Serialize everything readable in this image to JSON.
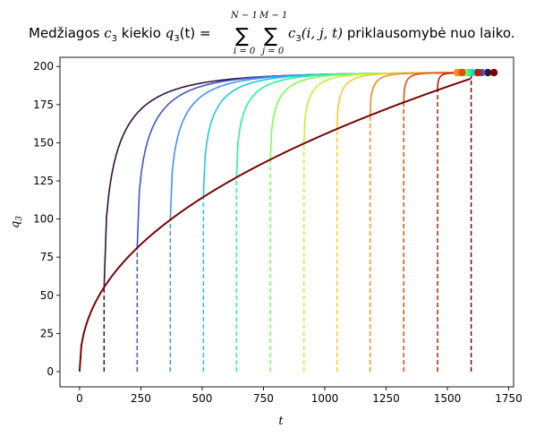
{
  "chart_data": {
    "type": "line",
    "title": {
      "prefix": "Medžiagos ",
      "c3": "c",
      "c3_sub": "3",
      "mid1": " kiekio ",
      "q": "q",
      "q_sub": "3",
      "mid2": "(t) = ",
      "sum1_upper": "N − 1",
      "sum1_lower": "i = 0",
      "sum2_upper": "M − 1",
      "sum2_lower": "j = 0",
      "sigma": "∑",
      "term": "c",
      "term_sub": "3",
      "term_args": "(i, j, t)",
      "suffix": " priklausomybė nuo laiko."
    },
    "xlabel": "t",
    "ylabel": {
      "base": "q",
      "sub": "3"
    },
    "xlim": [
      -80,
      1770
    ],
    "ylim": [
      -10,
      206
    ],
    "xticks": [
      0,
      250,
      500,
      750,
      1000,
      1250,
      1500,
      1750
    ],
    "yticks": [
      0,
      25,
      50,
      75,
      100,
      125,
      150,
      175,
      200
    ],
    "grid": false,
    "base_curve": {
      "color": "#7a0403",
      "x_end": 1595,
      "y_end": 192
    },
    "branches": [
      {
        "start": 100,
        "end": 1665,
        "color": "#30123b",
        "final": 196
      },
      {
        "start": 235,
        "end": 1640,
        "color": "#4454c4",
        "final": 196
      },
      {
        "start": 370,
        "end": 1620,
        "color": "#4391f9",
        "final": 196
      },
      {
        "start": 505,
        "end": 1600,
        "color": "#1fc9dd",
        "final": 196
      },
      {
        "start": 640,
        "end": 1585,
        "color": "#2af396",
        "final": 196
      },
      {
        "start": 778,
        "end": 1570,
        "color": "#7cfe54",
        "final": 196
      },
      {
        "start": 915,
        "end": 1555,
        "color": "#c5f034",
        "final": 196
      },
      {
        "start": 1050,
        "end": 1545,
        "color": "#f8c933",
        "final": 196
      },
      {
        "start": 1185,
        "end": 1540,
        "color": "#fb8a22",
        "final": 196
      },
      {
        "start": 1322,
        "end": 1560,
        "color": "#e54d0d",
        "final": 196
      },
      {
        "start": 1460,
        "end": 1625,
        "color": "#ba2007",
        "final": 196
      },
      {
        "start": 1597,
        "end": 1690,
        "color": "#7a0403",
        "final": 196
      }
    ]
  }
}
